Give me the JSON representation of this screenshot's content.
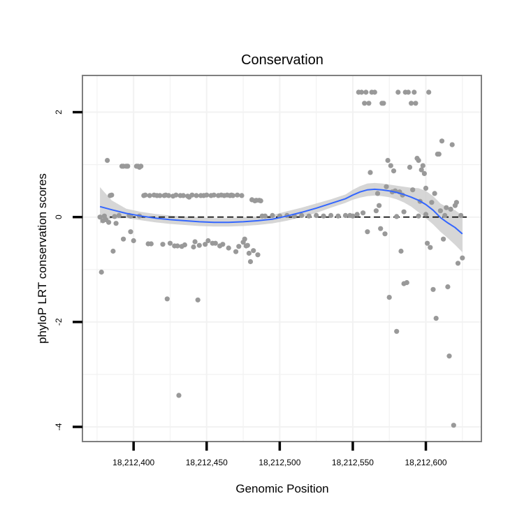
{
  "chart_data": {
    "type": "scatter",
    "title": "Conservation",
    "xlabel": "Genomic Position",
    "ylabel": "phyloP LRT conservation scores",
    "xlim": [
      18212365,
      18212638
    ],
    "ylim": [
      -4.28,
      2.7
    ],
    "x_ticks": [
      18212400,
      18212450,
      18212500,
      18212550,
      18212600
    ],
    "x_tick_labels": [
      "18,212,400",
      "18,212,450",
      "18,212,500",
      "18,212,550",
      "18,212,600"
    ],
    "y_ticks": [
      -4,
      -2,
      0,
      2
    ],
    "y_tick_labels": [
      "-4",
      "-2",
      "0",
      "2"
    ],
    "reference_line": {
      "y": 0,
      "style": "dashed"
    },
    "colors": {
      "points": "#999999",
      "smooth": "#3366FF",
      "band": "#cccccc",
      "panel_border": "#7f7f7f",
      "grid": "#f2f2f2"
    },
    "series": [
      {
        "name": "phyloP scores",
        "kind": "points",
        "points": [
          [
            18212377,
            0
          ],
          [
            18212378,
            -1.05
          ],
          [
            18212379,
            -0.07
          ],
          [
            18212380,
            0.02
          ],
          [
            18212381,
            -0.05
          ],
          [
            18212382,
            1.08
          ],
          [
            18212383,
            -0.1
          ],
          [
            18212384,
            0.41
          ],
          [
            18212385,
            0.42
          ],
          [
            18212386,
            -0.65
          ],
          [
            18212387,
            0.01
          ],
          [
            18212388,
            -0.12
          ],
          [
            18212390,
            0.03
          ],
          [
            18212392,
            0.97
          ],
          [
            18212393,
            0.97
          ],
          [
            18212393,
            -0.42
          ],
          [
            18212395,
            0.97
          ],
          [
            18212396,
            0.97
          ],
          [
            18212397,
            0.03
          ],
          [
            18212398,
            -0.28
          ],
          [
            18212398,
            0.02
          ],
          [
            18212400,
            -0.45
          ],
          [
            18212402,
            0.97
          ],
          [
            18212403,
            0.97
          ],
          [
            18212404,
            0.95
          ],
          [
            18212404,
            0.02
          ],
          [
            18212405,
            0.97
          ],
          [
            18212407,
            0.41
          ],
          [
            18212408,
            0.42
          ],
          [
            18212410,
            -0.51
          ],
          [
            18212411,
            0.41
          ],
          [
            18212412,
            -0.51
          ],
          [
            18212414,
            0.42
          ],
          [
            18212416,
            0.41
          ],
          [
            18212418,
            0.41
          ],
          [
            18212420,
            -0.52
          ],
          [
            18212421,
            0.41
          ],
          [
            18212422,
            0.42
          ],
          [
            18212423,
            -1.56
          ],
          [
            18212424,
            0.41
          ],
          [
            18212425,
            -0.5
          ],
          [
            18212427,
            0.4
          ],
          [
            18212428,
            -0.55
          ],
          [
            18212429,
            0.42
          ],
          [
            18212430,
            -0.55
          ],
          [
            18212431,
            -3.4
          ],
          [
            18212432,
            0.41
          ],
          [
            18212433,
            -0.56
          ],
          [
            18212434,
            0.41
          ],
          [
            18212435,
            -0.53
          ],
          [
            18212437,
            0.4
          ],
          [
            18212438,
            0.38
          ],
          [
            18212440,
            0.42
          ],
          [
            18212441,
            -0.57
          ],
          [
            18212442,
            -0.47
          ],
          [
            18212443,
            0.41
          ],
          [
            18212444,
            -1.58
          ],
          [
            18212445,
            -0.54
          ],
          [
            18212446,
            0.41
          ],
          [
            18212448,
            0.41
          ],
          [
            18212449,
            -0.52
          ],
          [
            18212450,
            0.42
          ],
          [
            18212451,
            -0.45
          ],
          [
            18212453,
            0.41
          ],
          [
            18212454,
            -0.5
          ],
          [
            18212455,
            0.42
          ],
          [
            18212456,
            -0.5
          ],
          [
            18212458,
            0.41
          ],
          [
            18212459,
            -0.55
          ],
          [
            18212460,
            0.42
          ],
          [
            18212461,
            -0.52
          ],
          [
            18212462,
            0.41
          ],
          [
            18212464,
            0.42
          ],
          [
            18212465,
            -0.59
          ],
          [
            18212466,
            0.41
          ],
          [
            18212467,
            0.42
          ],
          [
            18212468,
            0.41
          ],
          [
            18212470,
            -0.66
          ],
          [
            18212471,
            0.42
          ],
          [
            18212472,
            -0.56
          ],
          [
            18212474,
            0.41
          ],
          [
            18212475,
            -0.48
          ],
          [
            18212476,
            -0.42
          ],
          [
            18212477,
            -0.55
          ],
          [
            18212478,
            -0.54
          ],
          [
            18212479,
            -0.69
          ],
          [
            18212480,
            -0.85
          ],
          [
            18212481,
            0.33
          ],
          [
            18212482,
            -0.64
          ],
          [
            18212483,
            0.31
          ],
          [
            18212484,
            0.32
          ],
          [
            18212485,
            -0.72
          ],
          [
            18212486,
            0.32
          ],
          [
            18212487,
            0.31
          ],
          [
            18212488,
            0.02
          ],
          [
            18212490,
            0.02
          ],
          [
            18212495,
            0.03
          ],
          [
            18212500,
            0.02
          ],
          [
            18212505,
            0.03
          ],
          [
            18212510,
            0.02
          ],
          [
            18212515,
            0.03
          ],
          [
            18212520,
            0.02
          ],
          [
            18212525,
            0.03
          ],
          [
            18212530,
            0.02
          ],
          [
            18212535,
            0.03
          ],
          [
            18212540,
            0.02
          ],
          [
            18212545,
            0.03
          ],
          [
            18212548,
            0.03
          ],
          [
            18212550,
            0.02
          ],
          [
            18212553,
            0.05
          ],
          [
            18212554,
            2.38
          ],
          [
            18212556,
            2.38
          ],
          [
            18212557,
            0.08
          ],
          [
            18212558,
            2.17
          ],
          [
            18212559,
            2.38
          ],
          [
            18212560,
            -0.28
          ],
          [
            18212561,
            2.17
          ],
          [
            18212562,
            0.85
          ],
          [
            18212563,
            2.38
          ],
          [
            18212565,
            2.38
          ],
          [
            18212566,
            0.12
          ],
          [
            18212567,
            0.45
          ],
          [
            18212568,
            0.22
          ],
          [
            18212569,
            -0.22
          ],
          [
            18212570,
            2.17
          ],
          [
            18212571,
            2.17
          ],
          [
            18212572,
            -0.32
          ],
          [
            18212573,
            0.58
          ],
          [
            18212574,
            1.08
          ],
          [
            18212575,
            -1.53
          ],
          [
            18212576,
            0.98
          ],
          [
            18212577,
            0.48
          ],
          [
            18212578,
            0.88
          ],
          [
            18212579,
            0.5
          ],
          [
            18212580,
            -2.18
          ],
          [
            18212580,
            0.01
          ],
          [
            18212581,
            2.38
          ],
          [
            18212582,
            0.48
          ],
          [
            18212583,
            -0.65
          ],
          [
            18212584,
            0.42
          ],
          [
            18212585,
            0.1
          ],
          [
            18212585,
            -1.27
          ],
          [
            18212586,
            2.38
          ],
          [
            18212587,
            -1.25
          ],
          [
            18212588,
            2.38
          ],
          [
            18212589,
            0.95
          ],
          [
            18212590,
            2.17
          ],
          [
            18212591,
            0.52
          ],
          [
            18212592,
            2.38
          ],
          [
            18212593,
            2.17
          ],
          [
            18212594,
            1.12
          ],
          [
            18212595,
            1.08
          ],
          [
            18212595,
            0.02
          ],
          [
            18212596,
            0.3
          ],
          [
            18212597,
            0.9
          ],
          [
            18212598,
            0.98
          ],
          [
            18212599,
            0.83
          ],
          [
            18212600,
            0.55
          ],
          [
            18212600,
            0.05
          ],
          [
            18212601,
            -0.5
          ],
          [
            18212602,
            2.38
          ],
          [
            18212603,
            -0.58
          ],
          [
            18212604,
            0.28
          ],
          [
            18212605,
            -1.38
          ],
          [
            18212606,
            0.45
          ],
          [
            18212607,
            -1.93
          ],
          [
            18212608,
            1.2
          ],
          [
            18212609,
            1.2
          ],
          [
            18212610,
            0.12
          ],
          [
            18212611,
            1.45
          ],
          [
            18212612,
            -0.42
          ],
          [
            18212613,
            0.03
          ],
          [
            18212614,
            0.18
          ],
          [
            18212615,
            -1.33
          ],
          [
            18212616,
            -2.65
          ],
          [
            18212617,
            0.15
          ],
          [
            18212618,
            1.38
          ],
          [
            18212619,
            -3.97
          ],
          [
            18212620,
            0.22
          ],
          [
            18212621,
            0.28
          ],
          [
            18212622,
            -0.88
          ],
          [
            18212624,
            0.03
          ],
          [
            18212625,
            -0.78
          ]
        ]
      },
      {
        "name": "loess smooth",
        "kind": "line",
        "x": [
          18212377,
          18212385,
          18212395,
          18212405,
          18212415,
          18212425,
          18212435,
          18212445,
          18212455,
          18212465,
          18212475,
          18212485,
          18212495,
          18212505,
          18212515,
          18212525,
          18212535,
          18212545,
          18212550,
          18212555,
          18212560,
          18212565,
          18212570,
          18212575,
          18212580,
          18212585,
          18212590,
          18212595,
          18212600,
          18212605,
          18212610,
          18212615,
          18212620,
          18212625
        ],
        "y": [
          0.2,
          0.14,
          0.07,
          0.02,
          -0.02,
          -0.05,
          -0.07,
          -0.09,
          -0.1,
          -0.1,
          -0.09,
          -0.07,
          -0.04,
          0.02,
          0.09,
          0.17,
          0.26,
          0.35,
          0.42,
          0.48,
          0.52,
          0.53,
          0.52,
          0.5,
          0.47,
          0.43,
          0.38,
          0.32,
          0.24,
          0.13,
          -0.01,
          -0.11,
          -0.2,
          -0.32
        ],
        "lower": [
          -0.12,
          -0.03,
          -0.02,
          -0.06,
          -0.1,
          -0.13,
          -0.15,
          -0.17,
          -0.18,
          -0.18,
          -0.17,
          -0.15,
          -0.12,
          -0.07,
          0.0,
          0.08,
          0.18,
          0.27,
          0.33,
          0.37,
          0.4,
          0.41,
          0.4,
          0.38,
          0.34,
          0.28,
          0.2,
          0.09,
          -0.02,
          -0.14,
          -0.28,
          -0.4,
          -0.53,
          -0.67
        ],
        "upper": [
          0.57,
          0.32,
          0.16,
          0.1,
          0.06,
          0.03,
          0.01,
          -0.01,
          -0.02,
          -0.02,
          -0.01,
          0.01,
          0.04,
          0.11,
          0.18,
          0.26,
          0.34,
          0.43,
          0.52,
          0.59,
          0.64,
          0.65,
          0.64,
          0.62,
          0.6,
          0.58,
          0.56,
          0.55,
          0.5,
          0.4,
          0.26,
          0.18,
          0.13,
          0.03
        ]
      }
    ]
  }
}
